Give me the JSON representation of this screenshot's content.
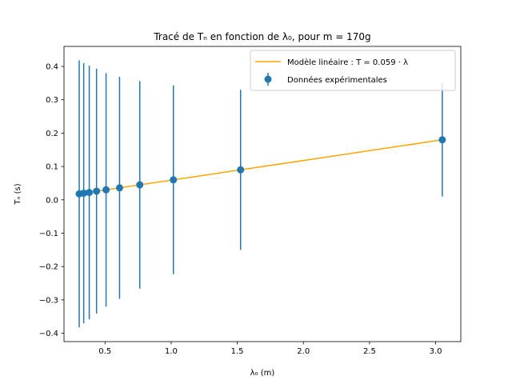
{
  "chart_data": {
    "type": "scatter",
    "title": "Tracé de Tₙ en fonction de λ₀, pour m = 170g",
    "xlabel": "λ₀ (m)",
    "ylabel": "Tₙ (s)",
    "xlim": [
      0.19,
      3.19
    ],
    "ylim": [
      -0.425,
      0.46
    ],
    "xticks": [
      0.5,
      1.0,
      1.5,
      2.0,
      2.5,
      3.0
    ],
    "xtick_labels": [
      "0.5",
      "1.0",
      "1.5",
      "2.0",
      "2.5",
      "3.0"
    ],
    "yticks": [
      -0.4,
      -0.3,
      -0.2,
      -0.1,
      0.0,
      0.1,
      0.2,
      0.3,
      0.4
    ],
    "ytick_labels": [
      "−0.4",
      "−0.3",
      "−0.2",
      "−0.1",
      "0.0",
      "0.1",
      "0.2",
      "0.3",
      "0.4"
    ],
    "grid": false,
    "legend_position": "top-right",
    "series": [
      {
        "name": "Données expérimentales",
        "kind": "errorbar",
        "color": "#1f77b4",
        "x": [
          0.305,
          0.339,
          0.381,
          0.436,
          0.508,
          0.61,
          0.763,
          1.017,
          1.525,
          3.05
        ],
        "y": [
          0.018,
          0.02,
          0.022,
          0.026,
          0.03,
          0.036,
          0.045,
          0.06,
          0.09,
          0.18
        ],
        "yerr": [
          0.4,
          0.39,
          0.38,
          0.367,
          0.35,
          0.333,
          0.311,
          0.283,
          0.24,
          0.17
        ]
      },
      {
        "name": "Modèle linéaire : T = 0.059 · λ",
        "kind": "line",
        "color": "#ffa500",
        "slope": 0.059,
        "x": [
          0.305,
          3.05
        ]
      }
    ]
  }
}
